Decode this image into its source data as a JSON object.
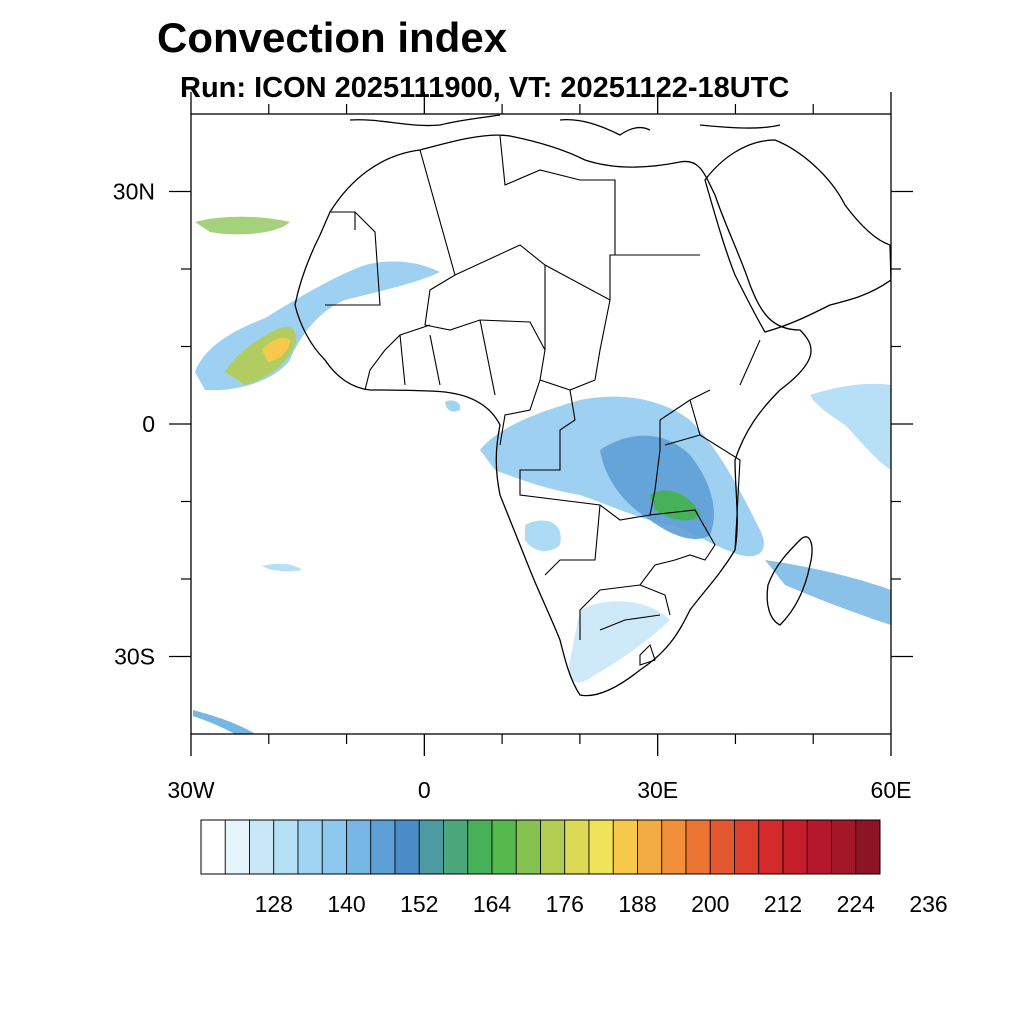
{
  "header": {
    "title": "Convection index",
    "subtitle": "Run: ICON 2025111900,  VT: 20251122-18UTC"
  },
  "map": {
    "region": "Africa",
    "lon_range": [
      -30,
      60
    ],
    "lat_range": [
      -40,
      40
    ],
    "lon_ticks": [
      {
        "value": -30,
        "label": "30W"
      },
      {
        "value": 0,
        "label": "0"
      },
      {
        "value": 30,
        "label": "30E"
      },
      {
        "value": 60,
        "label": "60E"
      }
    ],
    "lat_ticks": [
      {
        "value": 30,
        "label": "30N"
      },
      {
        "value": 0,
        "label": "0"
      },
      {
        "value": -30,
        "label": "30S"
      }
    ],
    "minor_lon_ticks": [
      -20,
      -10,
      10,
      20,
      40,
      50
    ],
    "minor_lat_ticks": [
      20,
      10,
      -10,
      -20
    ]
  },
  "colorbar": {
    "colors": [
      "#ffffff",
      "#e6f4fb",
      "#c9e8f7",
      "#b4e0f5",
      "#9fd5f3",
      "#8dc9ee",
      "#76b6e4",
      "#5e9fd6",
      "#4a8cc8",
      "#4d9aa3",
      "#4ba67c",
      "#47b15a",
      "#56b94b",
      "#85c24f",
      "#b3cc52",
      "#dcd956",
      "#f0e35a",
      "#f6c94d",
      "#f3ac42",
      "#f19039",
      "#ec7433",
      "#e4582f",
      "#dd3f2d",
      "#d42a2c",
      "#c61d2b",
      "#b5182a",
      "#a41728",
      "#8c1424"
    ],
    "labels": [
      "128",
      "140",
      "152",
      "164",
      "176",
      "188",
      "200",
      "212",
      "224",
      "236"
    ]
  }
}
